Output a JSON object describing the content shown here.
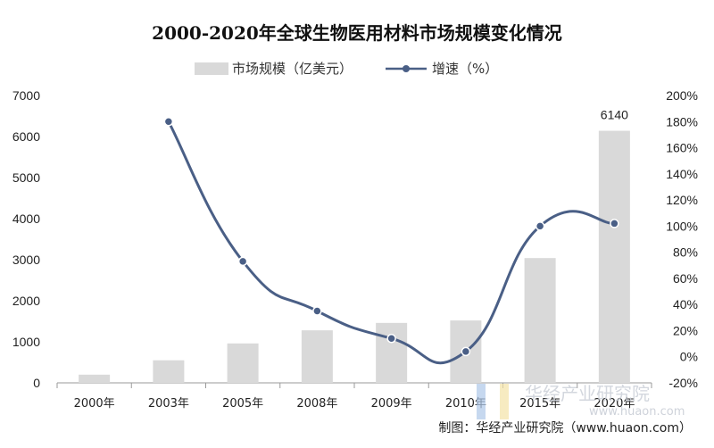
{
  "chart_data": {
    "type": "bar",
    "title": "2000-2020年全球生物医用材料市场规模变化情况",
    "categories": [
      "2000年",
      "2003年",
      "2005年",
      "2008年",
      "2009年",
      "2010年",
      "2015年",
      "2020年"
    ],
    "series": [
      {
        "name": "市场规模（亿美元）",
        "type": "bar",
        "axis": "left",
        "color": "#d9d9d9",
        "values": [
          200,
          550,
          960,
          1280,
          1460,
          1520,
          3040,
          6140
        ]
      },
      {
        "name": "增速（%）",
        "type": "line",
        "axis": "right",
        "color": "#4a5f86",
        "values": [
          null,
          180,
          73,
          35,
          14,
          4,
          100,
          102
        ]
      }
    ],
    "data_labels": [
      {
        "category": "2020年",
        "text": "6140"
      }
    ],
    "y_left": {
      "min": 0,
      "max": 7000,
      "ticks": [
        "0",
        "1000",
        "2000",
        "3000",
        "4000",
        "5000",
        "6000",
        "7000"
      ]
    },
    "y_right": {
      "min": -20,
      "max": 200,
      "ticks": [
        "-20%",
        "0%",
        "20%",
        "40%",
        "60%",
        "80%",
        "100%",
        "120%",
        "140%",
        "160%",
        "180%",
        "200%"
      ]
    },
    "legend_position": "top-center",
    "grid": false
  },
  "source": "制图：华经产业研究院（www.huaon.com）",
  "watermark": {
    "text": "华经产业研究院",
    "url": "www.huaon.com"
  }
}
